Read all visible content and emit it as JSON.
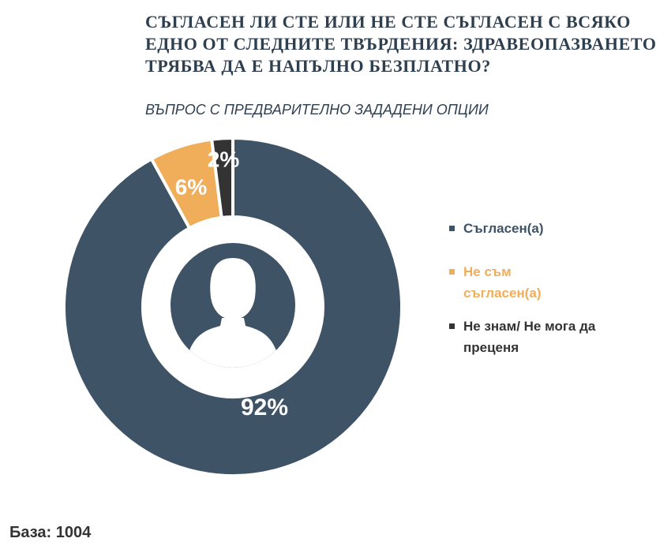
{
  "title": "СЪГЛАСЕН ЛИ СТЕ ИЛИ НЕ СТЕ СЪГЛАСЕН С ВСЯКО ЕДНО ОТ СЛЕДНИТЕ ТВЪРДЕНИЯ: ЗДРАВЕОПАЗВАНЕТО ТРЯБВА ДА Е НАПЪЛНО БЕЗПЛАТНО?",
  "subtitle": "ВЪПРОС С ПРЕДВАРИТЕЛНО ЗАДАДЕНИ ОПЦИИ",
  "base_label": "База: 1004",
  "center_icon": "person-silhouette-icon",
  "chart_data": {
    "type": "pie",
    "variant": "donut",
    "categories": [
      "Съгласен(а)",
      "Не съм съгласен(а)",
      "Не знам/ Не мога да преценя"
    ],
    "values": [
      92,
      6,
      2
    ],
    "labels": [
      "92%",
      "6%",
      "2%"
    ],
    "colors": [
      "#3e5366",
      "#f0ad5a",
      "#333333"
    ],
    "legend_text_colors": [
      "#3e5366",
      "#f0ad5a",
      "#333333"
    ],
    "legend_position": "right"
  }
}
